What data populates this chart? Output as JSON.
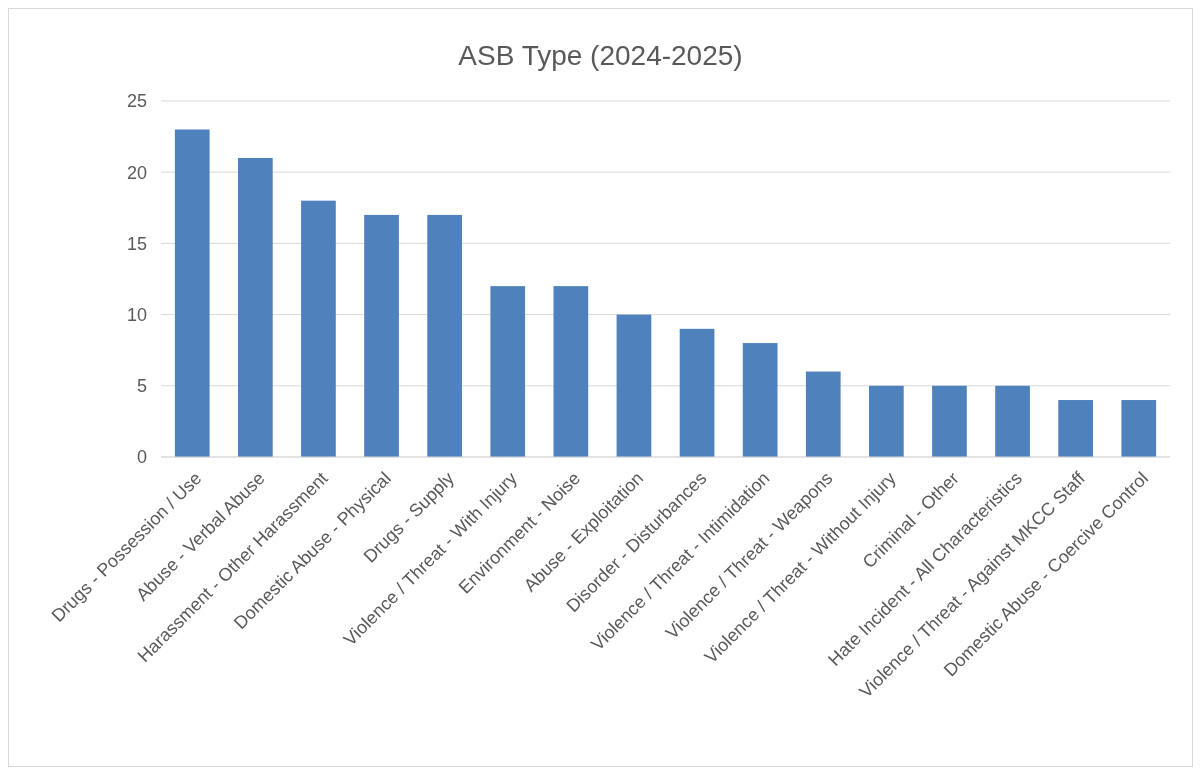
{
  "chart_data": {
    "type": "bar",
    "title": "ASB Type (2024-2025)",
    "categories": [
      "Drugs - Possession / Use",
      "Abuse - Verbal Abuse",
      "Harassment - Other Harassment",
      "Domestic Abuse - Physical",
      "Drugs - Supply",
      "Violence / Threat - With Injury",
      "Environment - Noise",
      "Abuse - Exploitation",
      "Disorder - Disturbances",
      "Violence / Threat - Intimidation",
      "Violence / Threat - Weapons",
      "Violence / Threat - Without Injury",
      "Criminal - Other",
      "Hate Incident - All Characteristics",
      "Violence / Threat - Against MKCC Staff",
      "Domestic Abuse - Coercive Control"
    ],
    "values": [
      23,
      21,
      18,
      17,
      17,
      12,
      12,
      10,
      9,
      8,
      6,
      5,
      5,
      5,
      4,
      4
    ],
    "color": "#4f81bd",
    "ylim": [
      0,
      25
    ],
    "yticks": [
      0,
      5,
      10,
      15,
      20,
      25
    ],
    "grid": "y"
  }
}
